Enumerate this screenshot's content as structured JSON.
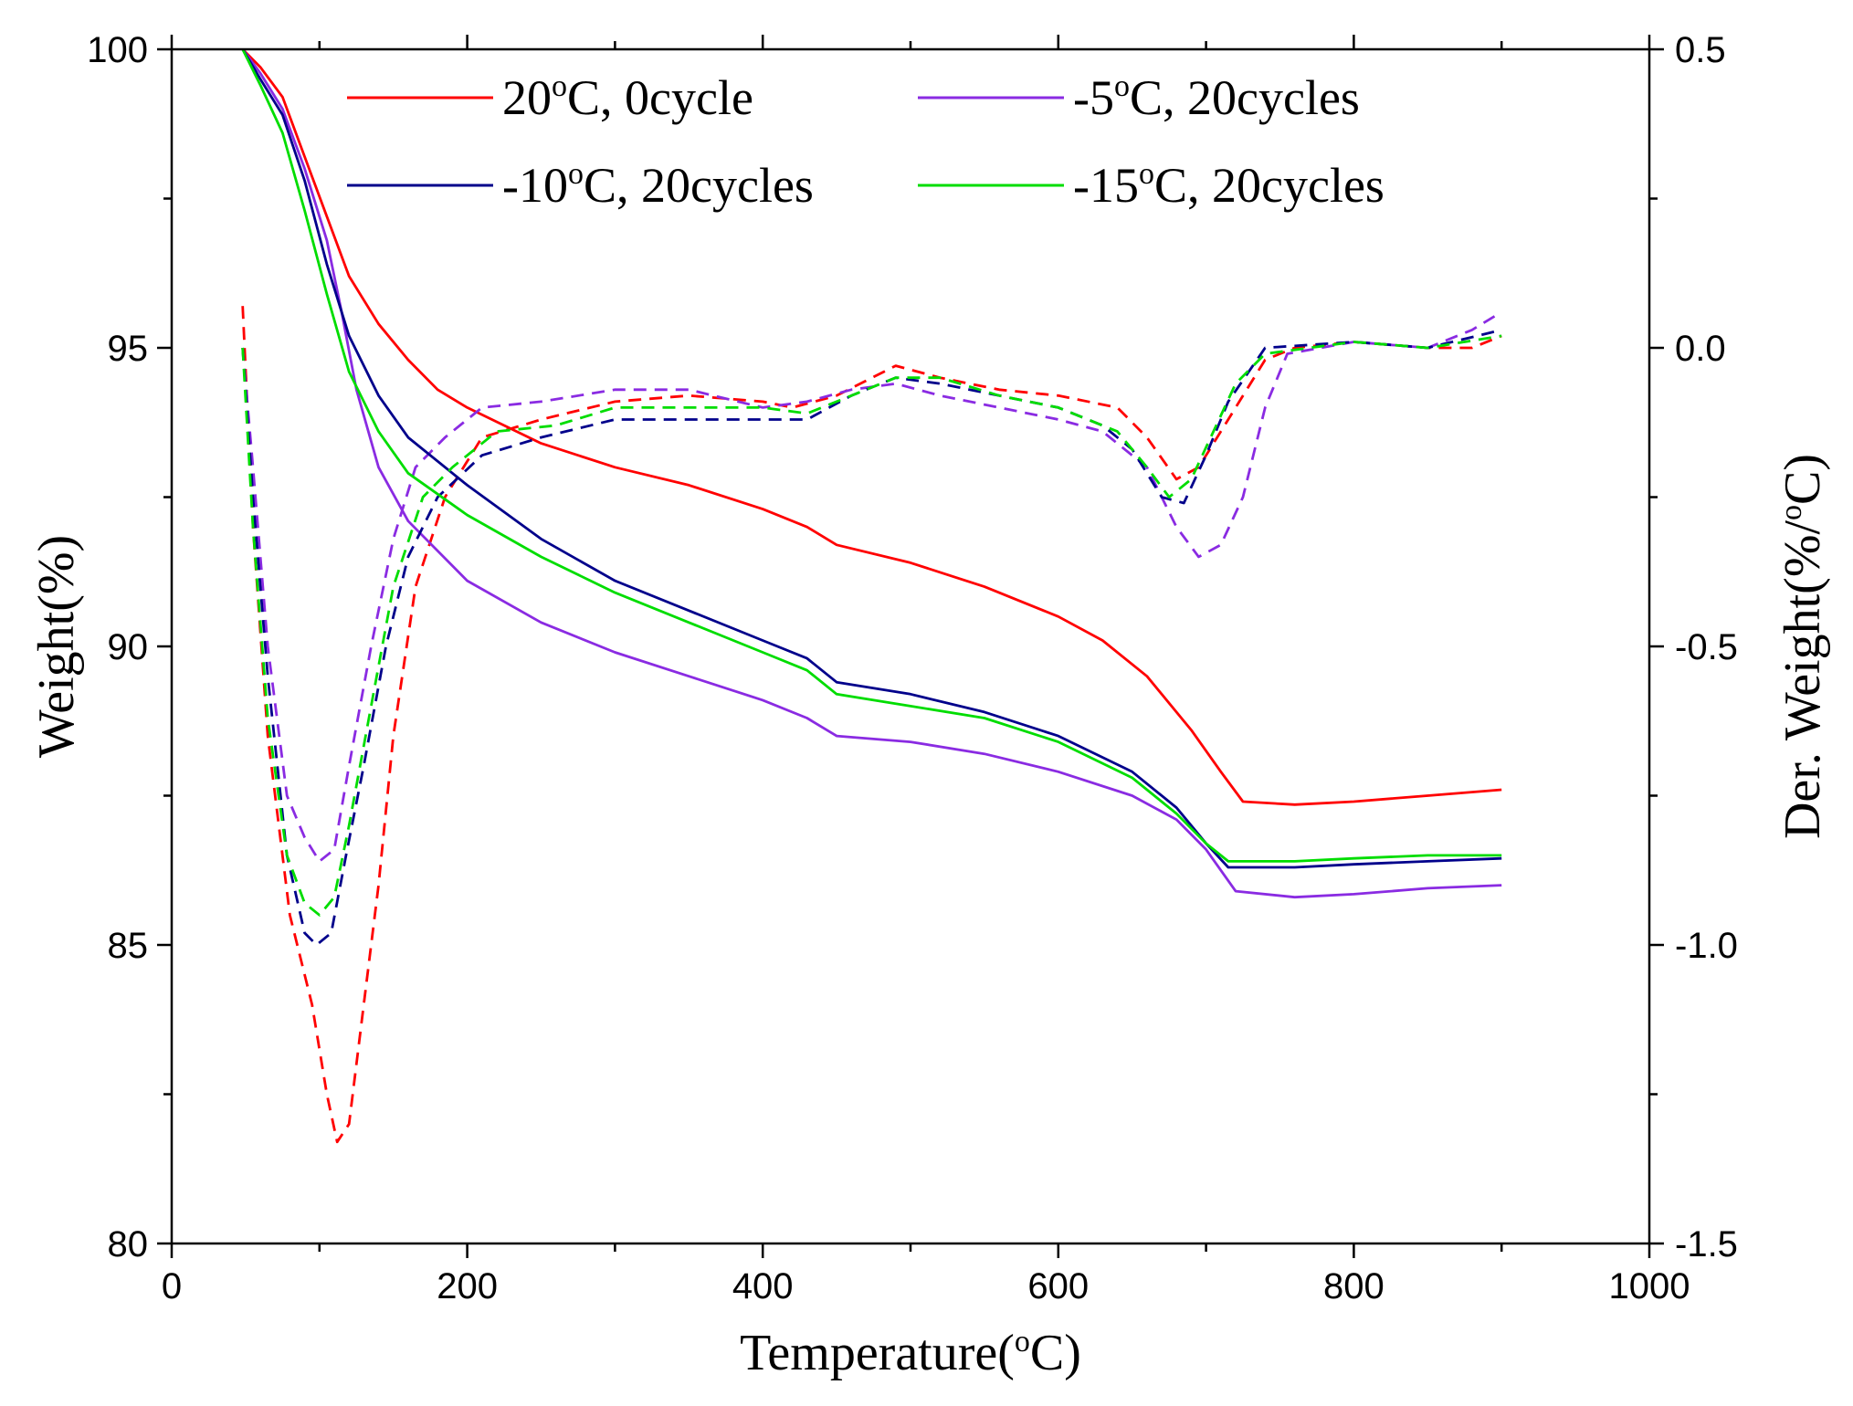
{
  "chart_data": {
    "type": "line",
    "title": "",
    "xlabel": {
      "prefix": "Temperature(",
      "sup": "o",
      "suffix": "C)"
    },
    "ylabel": "Weight(%)",
    "y2label": {
      "prefix": "Der. Weight(%/",
      "sup": "o",
      "suffix": "C)"
    },
    "xlim": [
      0,
      1000
    ],
    "ylim": [
      80,
      100
    ],
    "y2lim": [
      -1.5,
      0.5
    ],
    "x_ticks": [
      "0",
      "200",
      "400",
      "600",
      "800",
      "1000"
    ],
    "y_ticks": [
      "80",
      "85",
      "90",
      "95",
      "100"
    ],
    "y2_ticks": [
      "-1.5",
      "-1.0",
      "-0.5",
      "0.0",
      "0.5"
    ],
    "grid": false,
    "legend_position": "top",
    "series": [
      {
        "name": "20oC, 0cycle",
        "label_parts": {
          "prefix": "20",
          "sup": "o",
          "suffix": "C, 0cycle"
        },
        "color": "#ff0000",
        "weight": [
          [
            48,
            100
          ],
          [
            60,
            99.7
          ],
          [
            75,
            99.2
          ],
          [
            90,
            98.2
          ],
          [
            105,
            97.2
          ],
          [
            120,
            96.2
          ],
          [
            140,
            95.4
          ],
          [
            160,
            94.8
          ],
          [
            180,
            94.3
          ],
          [
            200,
            94.0
          ],
          [
            250,
            93.4
          ],
          [
            300,
            93.0
          ],
          [
            350,
            92.7
          ],
          [
            400,
            92.3
          ],
          [
            430,
            92.0
          ],
          [
            450,
            91.7
          ],
          [
            500,
            91.4
          ],
          [
            550,
            91.0
          ],
          [
            600,
            90.5
          ],
          [
            630,
            90.1
          ],
          [
            660,
            89.5
          ],
          [
            690,
            88.6
          ],
          [
            710,
            87.9
          ],
          [
            725,
            87.4
          ],
          [
            760,
            87.35
          ],
          [
            800,
            87.4
          ],
          [
            850,
            87.5
          ],
          [
            900,
            87.6
          ]
        ],
        "deriv": [
          [
            48,
            0.07
          ],
          [
            55,
            -0.3
          ],
          [
            65,
            -0.65
          ],
          [
            80,
            -0.95
          ],
          [
            95,
            -1.1
          ],
          [
            105,
            -1.25
          ],
          [
            112,
            -1.33
          ],
          [
            120,
            -1.3
          ],
          [
            130,
            -1.1
          ],
          [
            140,
            -0.9
          ],
          [
            150,
            -0.65
          ],
          [
            165,
            -0.4
          ],
          [
            185,
            -0.25
          ],
          [
            210,
            -0.15
          ],
          [
            250,
            -0.12
          ],
          [
            300,
            -0.09
          ],
          [
            350,
            -0.08
          ],
          [
            400,
            -0.09
          ],
          [
            420,
            -0.1
          ],
          [
            450,
            -0.08
          ],
          [
            490,
            -0.03
          ],
          [
            520,
            -0.05
          ],
          [
            560,
            -0.07
          ],
          [
            600,
            -0.08
          ],
          [
            640,
            -0.1
          ],
          [
            660,
            -0.15
          ],
          [
            680,
            -0.22
          ],
          [
            695,
            -0.2
          ],
          [
            715,
            -0.12
          ],
          [
            740,
            -0.02
          ],
          [
            760,
            0.0
          ],
          [
            800,
            0.01
          ],
          [
            850,
            0.0
          ],
          [
            880,
            0.0
          ],
          [
            900,
            0.02
          ]
        ]
      },
      {
        "name": "-5oC, 20cycles",
        "label_parts": {
          "prefix": "-5",
          "sup": "o",
          "suffix": "C, 20cycles"
        },
        "color": "#8a2be2",
        "weight": [
          [
            48,
            100
          ],
          [
            60,
            99.6
          ],
          [
            75,
            99.0
          ],
          [
            90,
            98.0
          ],
          [
            105,
            96.8
          ],
          [
            115,
            95.6
          ],
          [
            125,
            94.3
          ],
          [
            140,
            93.0
          ],
          [
            160,
            92.1
          ],
          [
            200,
            91.1
          ],
          [
            250,
            90.4
          ],
          [
            300,
            89.9
          ],
          [
            350,
            89.5
          ],
          [
            400,
            89.1
          ],
          [
            430,
            88.8
          ],
          [
            450,
            88.5
          ],
          [
            500,
            88.4
          ],
          [
            550,
            88.2
          ],
          [
            600,
            87.9
          ],
          [
            650,
            87.5
          ],
          [
            680,
            87.1
          ],
          [
            700,
            86.6
          ],
          [
            720,
            85.9
          ],
          [
            760,
            85.8
          ],
          [
            800,
            85.85
          ],
          [
            850,
            85.95
          ],
          [
            900,
            86.0
          ]
        ],
        "deriv": [
          [
            48,
            0.0
          ],
          [
            55,
            -0.2
          ],
          [
            65,
            -0.5
          ],
          [
            78,
            -0.75
          ],
          [
            90,
            -0.82
          ],
          [
            100,
            -0.86
          ],
          [
            110,
            -0.84
          ],
          [
            120,
            -0.7
          ],
          [
            135,
            -0.5
          ],
          [
            150,
            -0.32
          ],
          [
            165,
            -0.2
          ],
          [
            185,
            -0.15
          ],
          [
            210,
            -0.1
          ],
          [
            250,
            -0.09
          ],
          [
            300,
            -0.07
          ],
          [
            350,
            -0.07
          ],
          [
            400,
            -0.1
          ],
          [
            430,
            -0.09
          ],
          [
            460,
            -0.07
          ],
          [
            490,
            -0.06
          ],
          [
            520,
            -0.08
          ],
          [
            560,
            -0.1
          ],
          [
            600,
            -0.12
          ],
          [
            630,
            -0.14
          ],
          [
            660,
            -0.2
          ],
          [
            680,
            -0.3
          ],
          [
            695,
            -0.35
          ],
          [
            710,
            -0.33
          ],
          [
            725,
            -0.25
          ],
          [
            740,
            -0.1
          ],
          [
            755,
            -0.01
          ],
          [
            800,
            0.01
          ],
          [
            850,
            0.0
          ],
          [
            880,
            0.03
          ],
          [
            900,
            0.06
          ]
        ]
      },
      {
        "name": "-10oC, 20cycles",
        "label_parts": {
          "prefix": "-10",
          "sup": "o",
          "suffix": "C, 20cycles"
        },
        "color": "#00008b",
        "weight": [
          [
            48,
            100
          ],
          [
            60,
            99.5
          ],
          [
            75,
            98.9
          ],
          [
            90,
            97.8
          ],
          [
            105,
            96.4
          ],
          [
            120,
            95.2
          ],
          [
            140,
            94.2
          ],
          [
            160,
            93.5
          ],
          [
            200,
            92.7
          ],
          [
            250,
            91.8
          ],
          [
            300,
            91.1
          ],
          [
            350,
            90.6
          ],
          [
            400,
            90.1
          ],
          [
            430,
            89.8
          ],
          [
            450,
            89.4
          ],
          [
            500,
            89.2
          ],
          [
            550,
            88.9
          ],
          [
            600,
            88.5
          ],
          [
            650,
            87.9
          ],
          [
            680,
            87.3
          ],
          [
            700,
            86.7
          ],
          [
            715,
            86.3
          ],
          [
            760,
            86.3
          ],
          [
            800,
            86.35
          ],
          [
            850,
            86.4
          ],
          [
            900,
            86.45
          ]
        ],
        "deriv": [
          [
            48,
            0.0
          ],
          [
            55,
            -0.25
          ],
          [
            65,
            -0.55
          ],
          [
            78,
            -0.85
          ],
          [
            90,
            -0.98
          ],
          [
            98,
            -1.0
          ],
          [
            108,
            -0.98
          ],
          [
            118,
            -0.85
          ],
          [
            130,
            -0.7
          ],
          [
            145,
            -0.5
          ],
          [
            160,
            -0.35
          ],
          [
            180,
            -0.25
          ],
          [
            210,
            -0.18
          ],
          [
            250,
            -0.15
          ],
          [
            300,
            -0.12
          ],
          [
            350,
            -0.12
          ],
          [
            400,
            -0.12
          ],
          [
            430,
            -0.12
          ],
          [
            460,
            -0.08
          ],
          [
            490,
            -0.05
          ],
          [
            520,
            -0.06
          ],
          [
            560,
            -0.08
          ],
          [
            600,
            -0.1
          ],
          [
            630,
            -0.13
          ],
          [
            650,
            -0.17
          ],
          [
            670,
            -0.25
          ],
          [
            685,
            -0.26
          ],
          [
            700,
            -0.18
          ],
          [
            715,
            -0.09
          ],
          [
            740,
            0.0
          ],
          [
            800,
            0.01
          ],
          [
            850,
            0.0
          ],
          [
            900,
            0.03
          ]
        ]
      },
      {
        "name": "-15oC, 20cycles",
        "label_parts": {
          "prefix": "-15",
          "sup": "o",
          "suffix": "C, 20cycles"
        },
        "color": "#00dd00",
        "weight": [
          [
            48,
            100
          ],
          [
            60,
            99.4
          ],
          [
            75,
            98.6
          ],
          [
            90,
            97.3
          ],
          [
            105,
            95.9
          ],
          [
            120,
            94.6
          ],
          [
            140,
            93.6
          ],
          [
            160,
            92.9
          ],
          [
            200,
            92.2
          ],
          [
            250,
            91.5
          ],
          [
            300,
            90.9
          ],
          [
            350,
            90.4
          ],
          [
            400,
            89.9
          ],
          [
            430,
            89.6
          ],
          [
            450,
            89.2
          ],
          [
            500,
            89.0
          ],
          [
            550,
            88.8
          ],
          [
            600,
            88.4
          ],
          [
            650,
            87.8
          ],
          [
            680,
            87.2
          ],
          [
            700,
            86.7
          ],
          [
            715,
            86.4
          ],
          [
            760,
            86.4
          ],
          [
            800,
            86.45
          ],
          [
            850,
            86.5
          ],
          [
            900,
            86.5
          ]
        ],
        "deriv": [
          [
            48,
            0.0
          ],
          [
            55,
            -0.3
          ],
          [
            65,
            -0.62
          ],
          [
            78,
            -0.85
          ],
          [
            90,
            -0.93
          ],
          [
            100,
            -0.95
          ],
          [
            110,
            -0.92
          ],
          [
            120,
            -0.8
          ],
          [
            135,
            -0.6
          ],
          [
            150,
            -0.4
          ],
          [
            170,
            -0.25
          ],
          [
            190,
            -0.2
          ],
          [
            220,
            -0.14
          ],
          [
            260,
            -0.13
          ],
          [
            300,
            -0.1
          ],
          [
            350,
            -0.1
          ],
          [
            400,
            -0.1
          ],
          [
            430,
            -0.11
          ],
          [
            460,
            -0.08
          ],
          [
            490,
            -0.05
          ],
          [
            520,
            -0.05
          ],
          [
            560,
            -0.08
          ],
          [
            600,
            -0.1
          ],
          [
            640,
            -0.14
          ],
          [
            660,
            -0.2
          ],
          [
            675,
            -0.25
          ],
          [
            690,
            -0.22
          ],
          [
            705,
            -0.14
          ],
          [
            720,
            -0.06
          ],
          [
            740,
            -0.01
          ],
          [
            800,
            0.01
          ],
          [
            850,
            0.0
          ],
          [
            900,
            0.02
          ]
        ]
      }
    ]
  }
}
